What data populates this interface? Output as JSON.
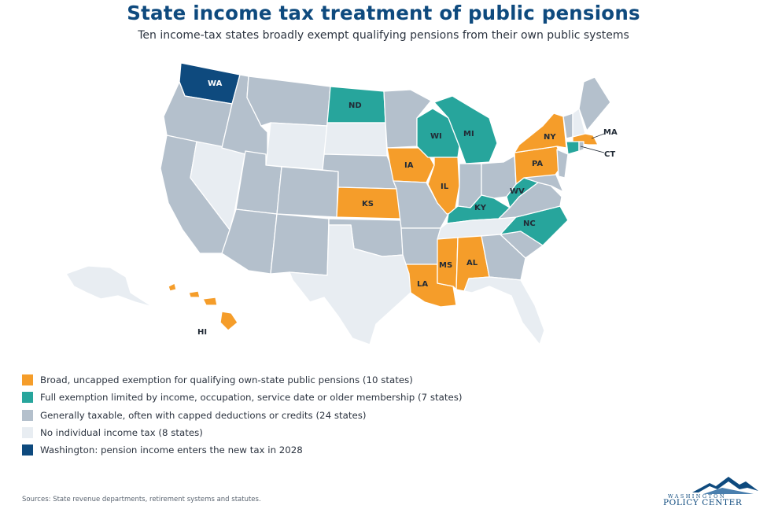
{
  "title": "State income tax treatment of public pensions",
  "subtitle": "Ten income-tax states broadly exempt qualifying pensions from their own public systems",
  "colors": {
    "broad": "#f59d2a",
    "limited": "#27a59c",
    "taxable": "#b4c0cc",
    "none": "#e8edf2",
    "washington": "#0e4a7e"
  },
  "legend": [
    {
      "category": "broad",
      "label": "Broad, uncapped exemption for qualifying own-state public pensions (10 states)"
    },
    {
      "category": "limited",
      "label": "Full exemption limited by income, occupation, service date or older membership (7 states)"
    },
    {
      "category": "taxable",
      "label": "Generally taxable, often with capped deductions or credits (24 states)"
    },
    {
      "category": "none",
      "label": "No individual income tax (8 states)"
    },
    {
      "category": "washington",
      "label": "Washington: pension income enters the new tax in 2028"
    }
  ],
  "state_labels": {
    "WA": "WA",
    "ND": "ND",
    "WI": "WI",
    "MI": "MI",
    "NY": "NY",
    "MA": "MA",
    "CT": "CT",
    "IA": "IA",
    "PA": "PA",
    "IL": "IL",
    "KS": "KS",
    "WV": "WV",
    "KY": "KY",
    "NC": "NC",
    "MS": "MS",
    "AL": "AL",
    "LA": "LA",
    "HI": "HI"
  },
  "source": "Sources: State revenue departments, retirement systems and statutes.",
  "logo": {
    "top": "WASHINGTON",
    "main": "POLICY CENTER"
  }
}
